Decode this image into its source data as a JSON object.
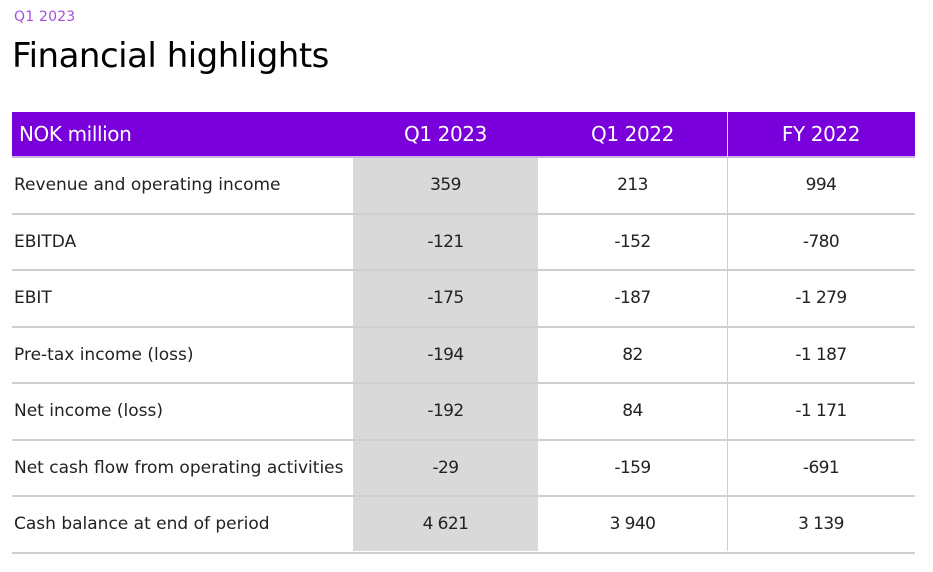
{
  "page": {
    "kicker": "Q1 2023",
    "title": "Financial highlights"
  },
  "table": {
    "header": {
      "label": "NOK million",
      "columns": [
        "Q1 2023",
        "Q1 2022",
        "FY 2022"
      ]
    },
    "highlighted_column": "Q1 2023",
    "rows": [
      {
        "label": "Revenue and operating income",
        "values": [
          "359",
          "213",
          "994"
        ]
      },
      {
        "label": "EBITDA",
        "values": [
          "-121",
          "-152",
          "-780"
        ]
      },
      {
        "label": "EBIT",
        "values": [
          "-175",
          "-187",
          "-1 279"
        ]
      },
      {
        "label": "Pre-tax income (loss)",
        "values": [
          "-194",
          "82",
          "-1 187"
        ]
      },
      {
        "label": "Net income (loss)",
        "values": [
          "-192",
          "84",
          "-1 171"
        ]
      },
      {
        "label": "Net cash flow from operating activities",
        "values": [
          "-29",
          "-159",
          "-691"
        ]
      },
      {
        "label": "Cash balance at end of period",
        "values": [
          "4 621",
          "3 940",
          "3 139"
        ]
      }
    ]
  },
  "colors": {
    "accent_header": "#7a00db",
    "kicker": "#a64ee0",
    "highlight_column": "#d9d9d9"
  }
}
